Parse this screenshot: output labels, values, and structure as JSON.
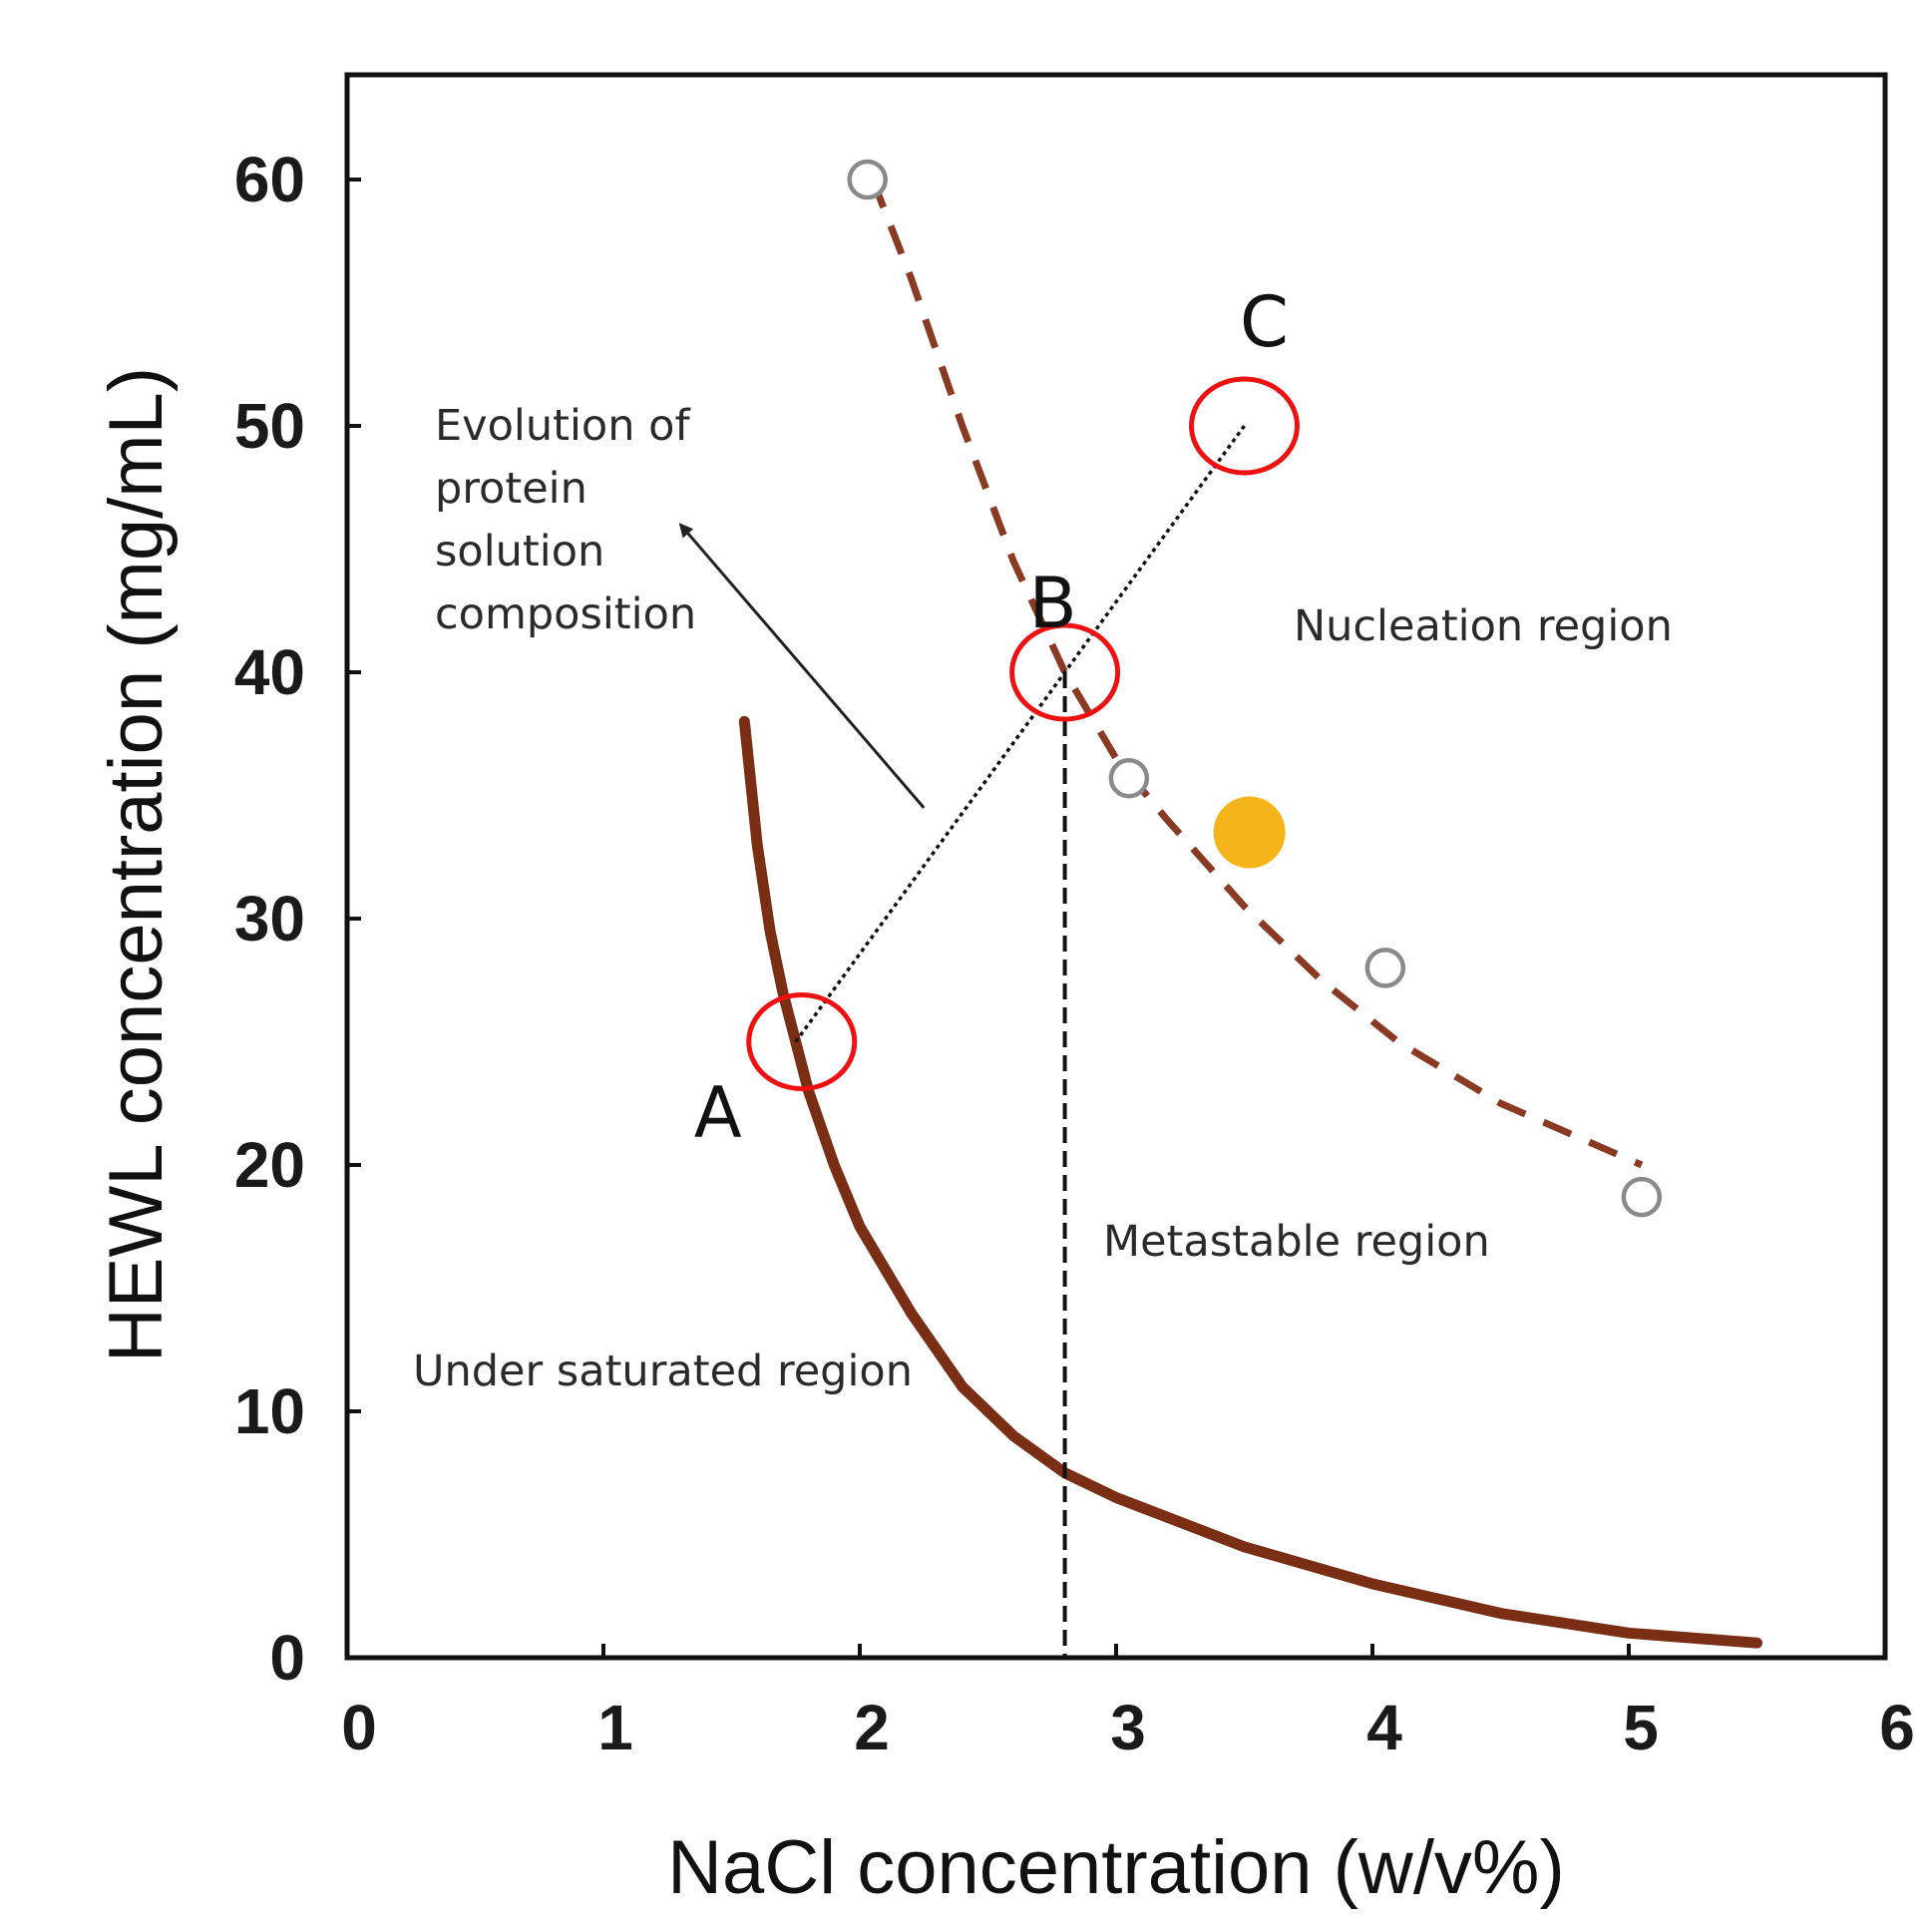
{
  "chart_data": {
    "type": "scatter",
    "title": "",
    "xlabel": "NaCl concentration (w/v%)",
    "ylabel": "HEWL concentration (mg/mL)",
    "xlim": [
      0,
      6
    ],
    "ylim": [
      0,
      64
    ],
    "xticks": [
      0,
      1,
      2,
      3,
      4,
      5,
      6
    ],
    "yticks": [
      0,
      10,
      20,
      30,
      40,
      50,
      60
    ],
    "grid": false,
    "series": [
      {
        "name": "Solubility curve",
        "style": "solid",
        "color": "#7a2e14",
        "x": [
          1.55,
          1.6,
          1.65,
          1.7,
          1.75,
          1.8,
          1.9,
          2.0,
          2.2,
          2.4,
          2.6,
          2.8,
          3.0,
          3.5,
          4.0,
          4.5,
          5.0,
          5.5
        ],
        "y": [
          38,
          33,
          29.5,
          27,
          25,
          23,
          20,
          17.5,
          14,
          11,
          9,
          7.5,
          6.5,
          4.5,
          3,
          1.8,
          1,
          0.6
        ]
      },
      {
        "name": "Nucleation boundary",
        "style": "dashed",
        "color": "#8a3a22",
        "x": [
          2.05,
          2.2,
          2.4,
          2.6,
          2.8,
          3.0,
          3.2,
          3.5,
          3.8,
          4.1,
          4.5,
          5.05
        ],
        "y": [
          60,
          56,
          50,
          44.5,
          40,
          36.5,
          34,
          30.5,
          27.5,
          25,
          22.5,
          20
        ]
      },
      {
        "name": "Observed points",
        "style": "open-circle",
        "x": [
          2.03,
          3.05,
          4.05,
          5.05
        ],
        "y": [
          60,
          35.7,
          28,
          18.7
        ]
      },
      {
        "name": "Highlighted point",
        "style": "filled-circle",
        "color": "#f4b41a",
        "x": [
          3.52
        ],
        "y": [
          33.5
        ]
      }
    ],
    "line_ABC": {
      "x": [
        1.75,
        3.5
      ],
      "y": [
        25,
        50
      ]
    },
    "points": [
      {
        "label": "A",
        "x": 1.75,
        "y": 25
      },
      {
        "label": "B",
        "x": 2.8,
        "y": 40
      },
      {
        "label": "C",
        "x": 3.5,
        "y": 50
      }
    ],
    "vertical_line_x": 2.8,
    "arrow": {
      "from": [
        2.25,
        34.5
      ],
      "to": [
        1.3,
        46
      ]
    },
    "annotations": [
      {
        "id": "evolution",
        "lines": [
          "Evolution of",
          "protein",
          "solution",
          "composition"
        ]
      },
      {
        "id": "nucleation",
        "lines": [
          "Nucleation region"
        ]
      },
      {
        "id": "metastable",
        "lines": [
          "Metastable region"
        ]
      },
      {
        "id": "undersaturated",
        "lines": [
          "Under saturated region"
        ]
      }
    ]
  }
}
